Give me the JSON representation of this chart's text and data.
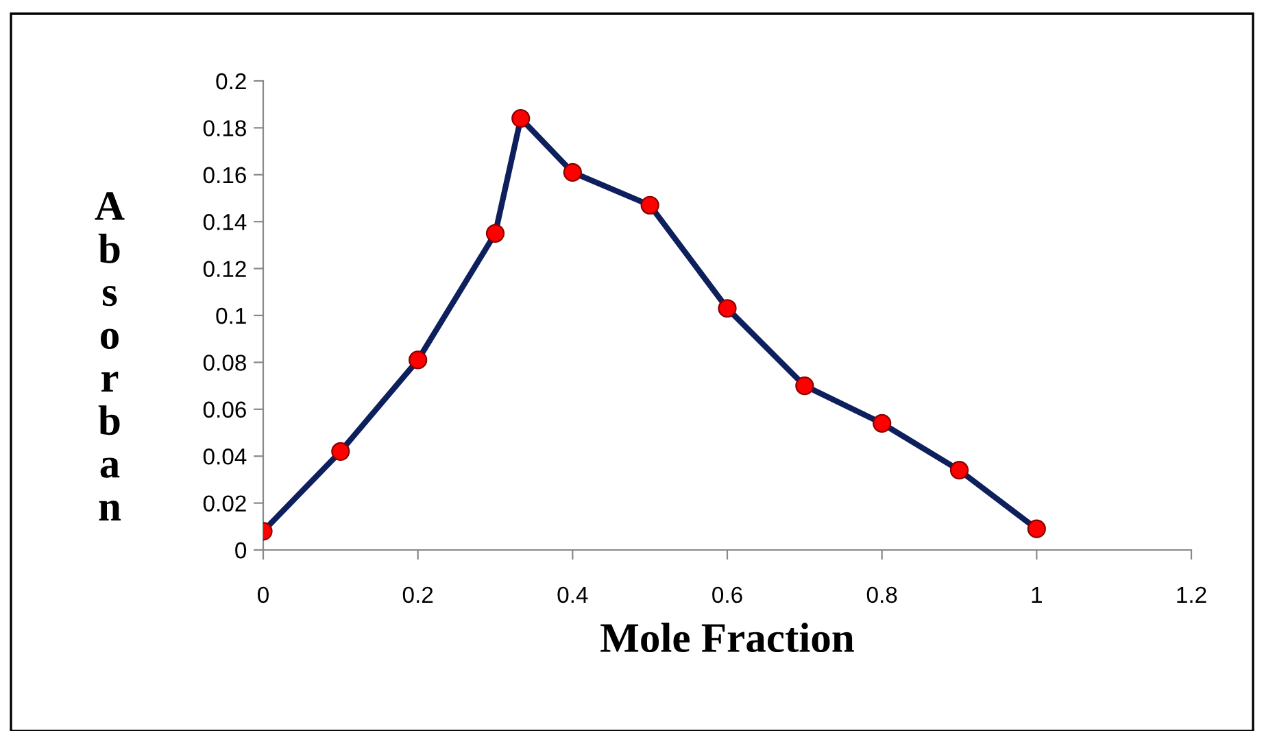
{
  "chart_data": {
    "type": "line",
    "xlabel": "Mole Fraction",
    "ylabel": "Absorban",
    "x": [
      0,
      0.1,
      0.2,
      0.3,
      0.333,
      0.4,
      0.5,
      0.6,
      0.7,
      0.8,
      0.9,
      1
    ],
    "series": [
      {
        "color": "#0d1f5c",
        "values": [
          0.008,
          0.042,
          0.081,
          0.135,
          0.184,
          0.161,
          0.147,
          0.103,
          0.07,
          0.054,
          0.034,
          0.009
        ]
      }
    ],
    "xlim": [
      0,
      1.2
    ],
    "xticks": [
      0,
      0.2,
      0.4,
      0.6,
      0.8,
      1,
      1.2
    ],
    "ylim": [
      0,
      0.2
    ],
    "yticks": [
      0,
      0.02,
      0.04,
      0.06,
      0.08,
      0.1,
      0.12,
      0.14,
      0.16,
      0.18,
      0.2
    ],
    "marker": "circle",
    "line_style": "solid",
    "grid": false,
    "legend": false
  }
}
